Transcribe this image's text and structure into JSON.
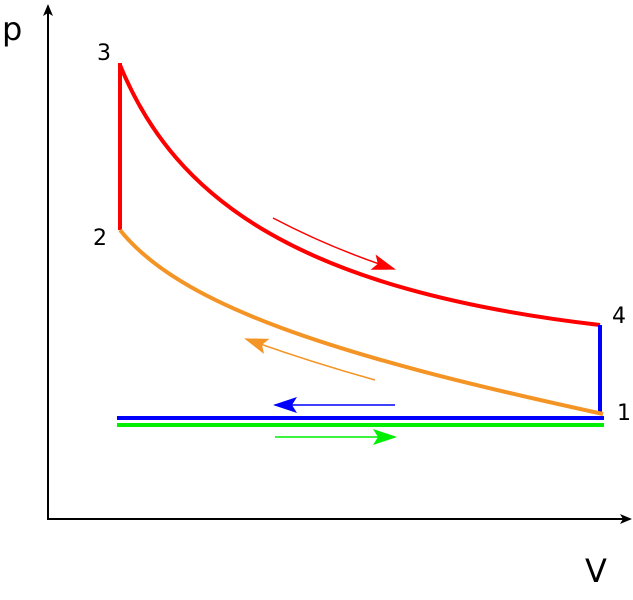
{
  "axes": {
    "y_label": "p",
    "x_label": "V"
  },
  "points": {
    "p1": "1",
    "p2": "2",
    "p3": "3",
    "p4": "4"
  },
  "colors": {
    "expansion": "#ff0000",
    "compression": "#f39425",
    "exhaust": "#0000ff",
    "intake": "#00ee00",
    "axis": "#000000"
  }
}
